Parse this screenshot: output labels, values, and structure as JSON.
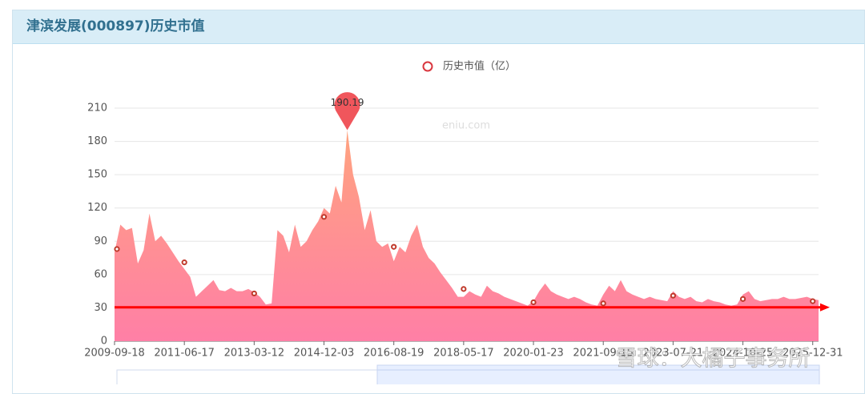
{
  "header": {
    "title": "津滨发展(000897)历史市值"
  },
  "watermarks": [
    "eniu.com",
    "雪球：大橘子事务所"
  ],
  "chart_data": {
    "type": "area",
    "legend": "历史市值（亿）",
    "color": "#d9363e",
    "area_colors": [
      "#ffa37f",
      "#ff7fa6"
    ],
    "values": [
      80,
      105,
      100,
      102,
      70,
      82,
      115,
      90,
      95,
      88,
      80,
      72,
      65,
      58,
      40,
      45,
      50,
      55,
      46,
      45,
      48,
      45,
      45,
      47,
      44,
      40,
      33,
      34,
      100,
      95,
      80,
      105,
      85,
      90,
      100,
      108,
      120,
      115,
      140,
      125,
      190.19,
      150,
      130,
      100,
      118,
      90,
      85,
      88,
      72,
      85,
      80,
      95,
      105,
      85,
      75,
      70,
      62,
      55,
      48,
      40,
      40,
      45,
      42,
      40,
      50,
      45,
      43,
      40,
      38,
      36,
      34,
      32,
      36,
      45,
      52,
      45,
      42,
      40,
      38,
      40,
      38,
      35,
      33,
      32,
      42,
      50,
      45,
      55,
      45,
      42,
      40,
      38,
      40,
      38,
      37,
      36,
      45,
      40,
      38,
      40,
      36,
      35,
      38,
      36,
      35,
      33,
      32,
      33,
      42,
      45,
      38,
      36,
      37,
      38,
      38,
      40,
      38,
      38,
      39,
      40,
      38,
      37
    ],
    "peak_index": 40,
    "mark_points": [
      83,
      71,
      43,
      112,
      85,
      47,
      35,
      34,
      41,
      38,
      36
    ],
    "mark_line": 30.5,
    "mark_line_color": "#ff0000",
    "xlim": [
      0,
      121
    ],
    "xticks": [
      {
        "value": 0,
        "label": "2009-09-18"
      },
      {
        "value": 12,
        "label": "2011-06-17"
      },
      {
        "value": 24,
        "label": "2013-03-12"
      },
      {
        "value": 36,
        "label": "2014-12-03"
      },
      {
        "value": 48,
        "label": "2016-08-19"
      },
      {
        "value": 60,
        "label": "2018-05-17"
      },
      {
        "value": 72,
        "label": "2020-01-23"
      },
      {
        "value": 84,
        "label": "2021-09-15"
      },
      {
        "value": 96,
        "label": "2023-07-21"
      },
      {
        "value": 108,
        "label": "2024-10-25"
      },
      {
        "value": 120,
        "label": "2025-12-31"
      }
    ],
    "ylim": [
      0,
      210
    ],
    "yticks": [
      0,
      30,
      60,
      90,
      120,
      150,
      180,
      210
    ],
    "grid": true
  }
}
